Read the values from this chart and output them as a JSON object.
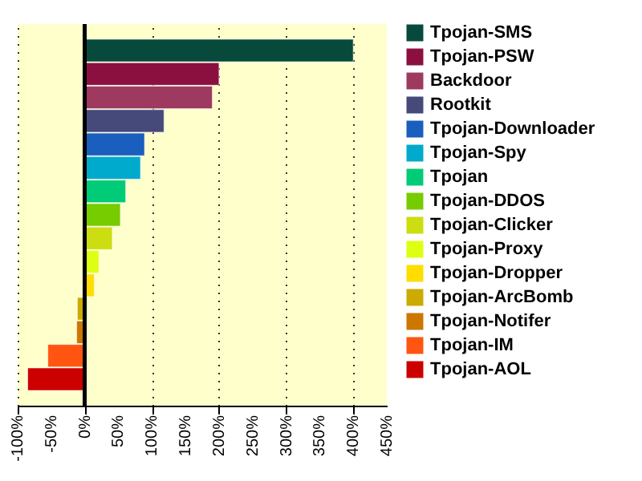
{
  "chart_data": {
    "type": "bar",
    "orientation": "horizontal",
    "categories": [
      null
    ],
    "series": [
      {
        "name": "Tpojan-SMS",
        "color": "#074a3c",
        "values": [
          400
        ]
      },
      {
        "name": "Tpojan-PSW",
        "color": "#8b1040",
        "values": [
          200
        ]
      },
      {
        "name": "Backdoor",
        "color": "#9e3a60",
        "values": [
          190
        ]
      },
      {
        "name": "Rootkit",
        "color": "#464a7a",
        "values": [
          118
        ]
      },
      {
        "name": "Tpojan-Downloader",
        "color": "#1a5ebe",
        "values": [
          89
        ]
      },
      {
        "name": "Tpojan-Spy",
        "color": "#00aacc",
        "values": [
          83
        ]
      },
      {
        "name": "Tpojan",
        "color": "#00cc77",
        "values": [
          61
        ]
      },
      {
        "name": "Tpojan-DDOS",
        "color": "#77cc00",
        "values": [
          53
        ]
      },
      {
        "name": "Tpojan-Clicker",
        "color": "#ccdd11",
        "values": [
          41
        ]
      },
      {
        "name": "Tpojan-Proxy",
        "color": "#ddff11",
        "values": [
          21
        ]
      },
      {
        "name": "Tpojan-Dropper",
        "color": "#ffdd00",
        "values": [
          14
        ]
      },
      {
        "name": "Tpojan-ArcBomb",
        "color": "#ccaa00",
        "values": [
          -11
        ]
      },
      {
        "name": "Tpojan-Notifer",
        "color": "#cc7700",
        "values": [
          -12
        ]
      },
      {
        "name": "Tpojan-IM",
        "color": "#ff5511",
        "values": [
          -55
        ]
      },
      {
        "name": "Tpojan-AOL",
        "color": "#cc0000",
        "values": [
          -85
        ]
      }
    ],
    "xlim": [
      -100,
      450
    ],
    "xticks": [
      {
        "value": -100,
        "label": "-100%"
      },
      {
        "value": -50,
        "label": "-50%"
      },
      {
        "value": 0,
        "label": "0%"
      },
      {
        "value": 50,
        "label": "50%"
      },
      {
        "value": 100,
        "label": "100%"
      },
      {
        "value": 150,
        "label": "150%"
      },
      {
        "value": 200,
        "label": "200%"
      },
      {
        "value": 250,
        "label": "250%"
      },
      {
        "value": 300,
        "label": "300%"
      },
      {
        "value": 350,
        "label": "350%"
      },
      {
        "value": 400,
        "label": "400%"
      },
      {
        "value": 450,
        "label": "450%"
      }
    ],
    "ref_lines": [
      {
        "axis": "x",
        "value": 0,
        "color": "#000000"
      }
    ],
    "grid": "x",
    "legend": "right",
    "tick_labels": "x"
  }
}
